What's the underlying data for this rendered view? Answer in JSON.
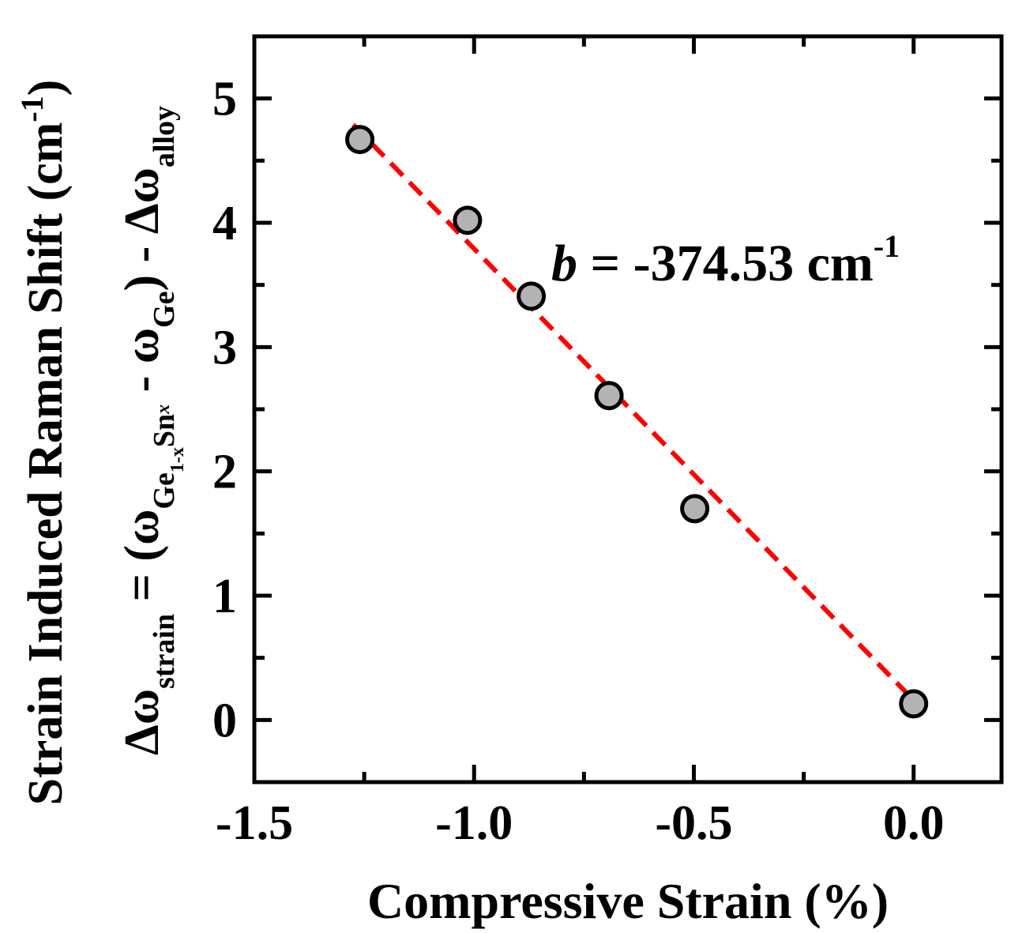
{
  "chart_data": {
    "type": "scatter",
    "xlabel": "Compressive Strain (%)",
    "ylabel_line1": {
      "main": "Strain Induced Raman Shift (cm",
      "sup": "-1",
      "end": ")"
    },
    "ylabel_line2": {
      "delta_omega": "Δω",
      "sub_strain": "strain",
      "eq_open": " = (ω",
      "sub_ge": "Ge",
      "sub_1x": "1-x",
      "sub_sn": "Sn",
      "sub_x": "x",
      "minus_omega": " - ω",
      "sub_ge2": "Ge",
      "close_minus": ") - Δω",
      "sub_alloy": "alloy"
    },
    "xlim": [
      -1.5,
      0.2
    ],
    "ylim": [
      -0.5,
      5.5
    ],
    "xticks": [
      -1.5,
      -1.0,
      -0.5,
      0.0
    ],
    "xtick_labels": [
      "-1.5",
      "-1.0",
      "-0.5",
      "0.0"
    ],
    "yticks": [
      0,
      1,
      2,
      3,
      4,
      5
    ],
    "ytick_labels": [
      "0",
      "1",
      "2",
      "3",
      "4",
      "5"
    ],
    "grid": false,
    "points": {
      "x": [
        -1.26,
        -1.015,
        -0.87,
        -0.693,
        -0.498,
        0.0
      ],
      "y": [
        4.67,
        4.02,
        3.41,
        2.61,
        1.7,
        0.13
      ],
      "fill": "#b3b3b3",
      "edge": "#000000"
    },
    "fit_line": {
      "x": [
        -1.275,
        -0.014
      ],
      "y": [
        4.79,
        0.21
      ],
      "color": "#ff0000",
      "style": "dashed"
    },
    "annotation": {
      "italic": "b",
      "text": " = -374.53 cm",
      "sup": "-1"
    }
  }
}
